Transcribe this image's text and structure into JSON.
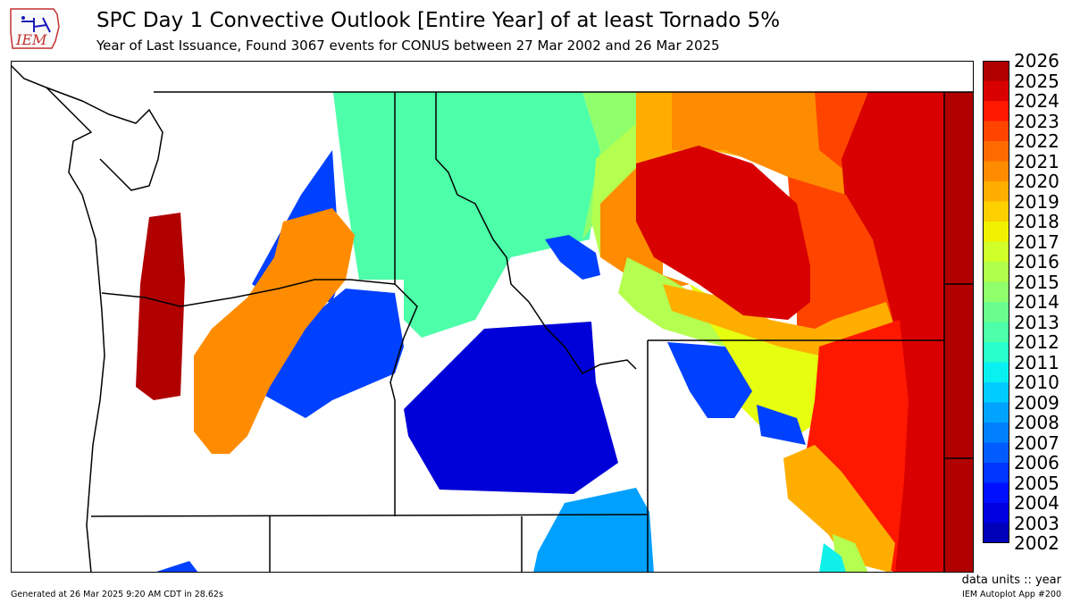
{
  "header": {
    "logo_text": "IEM",
    "title": "SPC Day 1 Convective Outlook [Entire Year] of at least Tornado 5%",
    "subtitle": "Year of Last Issuance, Found 3067 events for CONUS between 27 Mar 2002 and 26 Mar 2025"
  },
  "colorbar": {
    "labels": [
      "2026",
      "2025",
      "2024",
      "2023",
      "2022",
      "2021",
      "2020",
      "2019",
      "2018",
      "2017",
      "2016",
      "2015",
      "2014",
      "2013",
      "2012",
      "2011",
      "2010",
      "2009",
      "2008",
      "2007",
      "2006",
      "2005",
      "2004",
      "2003",
      "2002"
    ],
    "colors": [
      "#b00000",
      "#d80000",
      "#ff1800",
      "#ff4400",
      "#ff6a00",
      "#ff8c00",
      "#ffae00",
      "#ffd000",
      "#f0f000",
      "#d0ff2a",
      "#b0ff4a",
      "#90ff6c",
      "#6aff8c",
      "#4cffa8",
      "#28ffcc",
      "#08f0f0",
      "#00ccff",
      "#00a4ff",
      "#0080ff",
      "#005cff",
      "#0034ff",
      "#0010ff",
      "#0000e0",
      "#0000b8"
    ],
    "units_text": "data units :: year"
  },
  "map": {
    "colors": {
      "y2025": "#b00000",
      "y2024": "#d80000",
      "y2023": "#ff1800",
      "y2022": "#ff4400",
      "y2021": "#ff8c00",
      "y2020": "#ffae00",
      "y2017": "#e6ff10",
      "y2016": "#b4ff50",
      "y2015": "#90ff6c",
      "y2012": "#4cffa8",
      "y2011": "#10f0e8",
      "y2009": "#00a0ff",
      "y2008": "#0080ff",
      "y2006": "#0040ff",
      "y2003": "#0000d8",
      "y2002": "#0000b8"
    }
  },
  "footer": {
    "generated": "Generated at 26 Mar 2025 9:20 AM CDT in 28.62s",
    "app": "IEM Autoplot App #200"
  }
}
